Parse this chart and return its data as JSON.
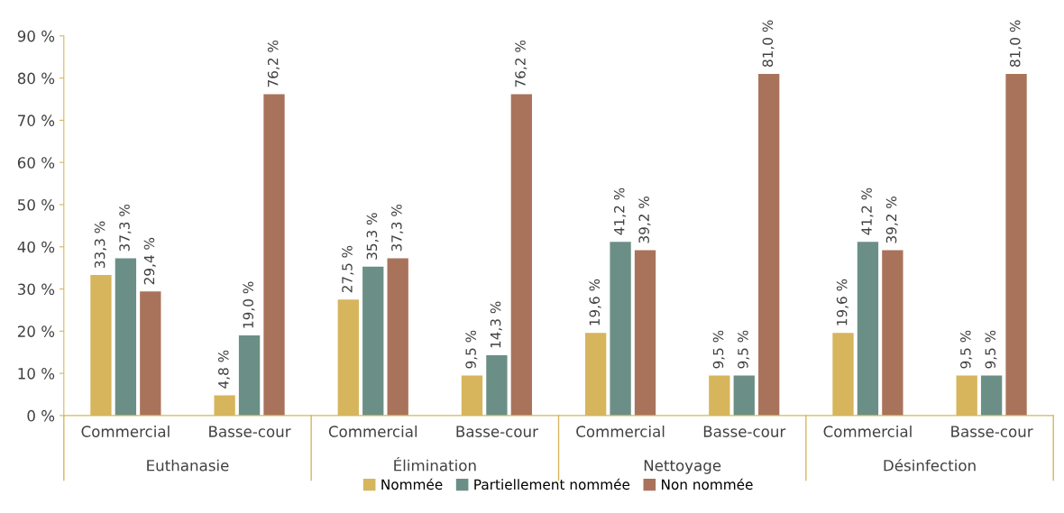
{
  "chart_data": {
    "type": "bar",
    "categories": [
      "Commercial",
      "Basse-cour",
      "Commercial",
      "Basse-cour",
      "Commercial",
      "Basse-cour",
      "Commercial",
      "Basse-cour"
    ],
    "annotations": [
      "Euthanasie",
      "Élimination",
      "Nettoyage",
      "Désinfection"
    ],
    "series": [
      {
        "name": "Nommée",
        "color": "#d6b55c",
        "values": [
          33.3,
          4.8,
          27.5,
          9.5,
          19.6,
          9.5,
          19.6,
          9.5
        ],
        "value_labels": [
          "33,3 %",
          "4,8 %",
          "27,5 %",
          "9,5 %",
          "19,6 %",
          "9,5 %",
          "19,6 %",
          "9,5 %"
        ]
      },
      {
        "name": "Partiellement nommée",
        "color": "#6b8f86",
        "values": [
          37.3,
          19.0,
          35.3,
          14.3,
          41.2,
          9.5,
          41.2,
          9.5
        ],
        "value_labels": [
          "37,3 %",
          "19,0 %",
          "35,3 %",
          "14,3 %",
          "41,2 %",
          "9,5 %",
          "41,2 %",
          "9,5 %"
        ]
      },
      {
        "name": "Non nommée",
        "color": "#a9735b",
        "values": [
          29.4,
          76.2,
          37.3,
          76.2,
          39.2,
          81.0,
          39.2,
          81.0
        ],
        "value_labels": [
          "29,4 %",
          "76,2 %",
          "37,3 %",
          "76,2 %",
          "39,2 %",
          "81,0 %",
          "39,2 %",
          "81,0 %"
        ]
      }
    ],
    "ylim": [
      0,
      90
    ],
    "yticks": [
      {
        "value": 0,
        "label": "0 %"
      },
      {
        "value": 10,
        "label": "10 %"
      },
      {
        "value": 20,
        "label": "20 %"
      },
      {
        "value": 30,
        "label": "30 %"
      },
      {
        "value": 40,
        "label": "40 %"
      },
      {
        "value": 50,
        "label": "50 %"
      },
      {
        "value": 60,
        "label": "60 %"
      },
      {
        "value": 70,
        "label": "70 %"
      },
      {
        "value": 80,
        "label": "80 %"
      },
      {
        "value": 90,
        "label": "90 %"
      }
    ],
    "grid": false,
    "legend": "bottom"
  }
}
